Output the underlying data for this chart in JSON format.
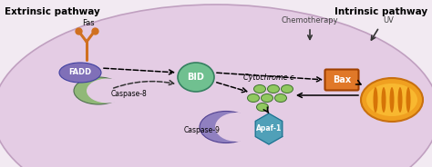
{
  "title_left": "Extrinsic pathway",
  "title_right": "Intrinsic pathway",
  "bg_color": "#f2eaf2",
  "cell_color": "#e4cce4",
  "cell_border_color": "#c0a0c0",
  "fadd_color": "#8070b8",
  "fadd_label": "FADD",
  "caspase8_color": "#90b878",
  "caspase8_label": "Caspase-8",
  "bid_color": "#70c090",
  "bid_label": "BID",
  "bax_color": "#e07828",
  "bax_label": "Bax",
  "cytc_color": "#90c860",
  "cytc_label": "Cytochrome c",
  "caspase9_color": "#9080c0",
  "caspase9_label": "Caspase-9",
  "apaf_color": "#50a0b8",
  "apaf_label": "Apaf-1",
  "fas_color": "#d07020",
  "fas_label": "Fas",
  "mito_orange": "#f0a020",
  "mito_dark": "#c87010",
  "mito_stripe": "#d06800",
  "chemo_label": "Chemotherapy",
  "uv_label": "UV",
  "arrow_color": "#333333"
}
